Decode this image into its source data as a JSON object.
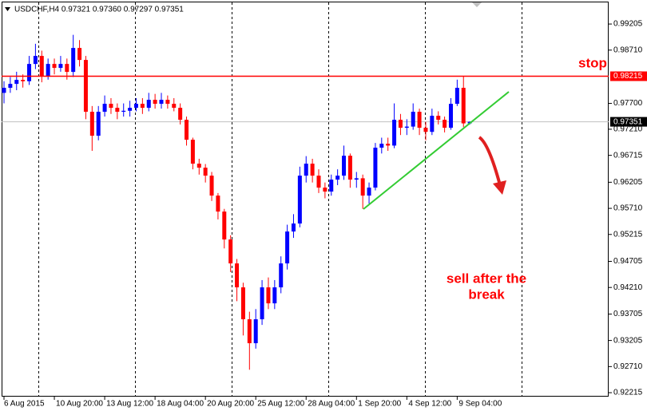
{
  "chart_data": {
    "type": "candlestick",
    "header": "USDCHF,H4  0.97321 0.97360 0.97297 0.97351",
    "categories": [
      "6 Aug 2015",
      null,
      null,
      null,
      null,
      null,
      null,
      null,
      "10 Aug 20:00",
      null,
      null,
      null,
      null,
      null,
      null,
      null,
      "13 Aug 12:00",
      null,
      null,
      null,
      null,
      null,
      null,
      null,
      "18 Aug 04:00",
      null,
      null,
      null,
      null,
      null,
      null,
      null,
      "20 Aug 20:00",
      null,
      null,
      null,
      null,
      null,
      null,
      null,
      "25 Aug 12:00",
      null,
      null,
      null,
      null,
      null,
      null,
      null,
      "28 Aug 04:00",
      null,
      null,
      null,
      null,
      null,
      null,
      null,
      "1 Sep 20:00",
      null,
      null,
      null,
      null,
      null,
      null,
      null,
      "4 Sep 12:00",
      null,
      null,
      null,
      null,
      null,
      null,
      null,
      "9 Sep 04:00",
      null,
      null
    ],
    "open": [
      0.979,
      0.97995,
      0.9807,
      0.98146,
      0.9812,
      0.98448,
      0.986,
      0.98222,
      0.98448,
      0.98373,
      0.98448,
      0.98297,
      0.98751,
      0.98524,
      0.97541,
      0.97087,
      0.97541,
      0.97692,
      0.97616,
      0.97541,
      0.9756,
      0.97616,
      0.97692,
      0.97616,
      0.97768,
      0.97692,
      0.97768,
      0.97692,
      0.97616,
      0.97389,
      0.97011,
      0.96557,
      0.96481,
      0.9633,
      0.95952,
      0.95649,
      0.9512,
      0.94666,
      0.94212,
      0.93607,
      0.93153,
      0.93607,
      0.94212,
      0.93909,
      0.94212,
      0.94666,
      0.95271,
      0.95422,
      0.9633,
      0.96557,
      0.9633,
      0.96103,
      0.96028,
      0.96255,
      0.9633,
      0.96708,
      0.96255,
      0.9628,
      0.95952,
      0.96103,
      0.9686,
      0.96935,
      0.969,
      0.97389,
      0.97238,
      0.9726,
      0.97541,
      0.97238,
      0.9716,
      0.97465,
      0.97389,
      0.97238,
      0.97692,
      0.97995,
      0.97321
    ],
    "high": [
      0.9812,
      0.982,
      0.983,
      0.9825,
      0.986,
      0.9883,
      0.987,
      0.9855,
      0.9855,
      0.986,
      0.9855,
      0.99,
      0.989,
      0.986,
      0.9765,
      0.9765,
      0.9785,
      0.978,
      0.977,
      0.977,
      0.9775,
      0.978,
      0.978,
      0.979,
      0.9788,
      0.979,
      0.9785,
      0.978,
      0.977,
      0.9745,
      0.9705,
      0.9665,
      0.9655,
      0.964,
      0.96,
      0.957,
      0.952,
      0.9475,
      0.943,
      0.9375,
      0.938,
      0.9435,
      0.944,
      0.9435,
      0.948,
      0.954,
      0.956,
      0.965,
      0.967,
      0.9665,
      0.9645,
      0.962,
      0.9635,
      0.9645,
      0.969,
      0.9675,
      0.964,
      0.9635,
      0.962,
      0.9695,
      0.9705,
      0.9705,
      0.977,
      0.975,
      0.974,
      0.977,
      0.976,
      0.9735,
      0.976,
      0.9755,
      0.9745,
      0.978,
      0.9815,
      0.98215,
      0.9736
    ],
    "low": [
      0.977,
      0.979,
      0.9795,
      0.98,
      0.9805,
      0.9835,
      0.981,
      0.9815,
      0.9825,
      0.983,
      0.9815,
      0.982,
      0.984,
      0.974,
      0.968,
      0.97,
      0.9745,
      0.975,
      0.974,
      0.9745,
      0.9745,
      0.9755,
      0.975,
      0.9755,
      0.976,
      0.976,
      0.976,
      0.9755,
      0.973,
      0.969,
      0.9645,
      0.9635,
      0.962,
      0.9585,
      0.955,
      0.9495,
      0.945,
      0.9395,
      0.933,
      0.9265,
      0.9305,
      0.935,
      0.938,
      0.938,
      0.941,
      0.9455,
      0.9515,
      0.9535,
      0.962,
      0.962,
      0.96,
      0.959,
      0.9595,
      0.9615,
      0.9625,
      0.961,
      0.961,
      0.957,
      0.958,
      0.9605,
      0.9675,
      0.968,
      0.9685,
      0.971,
      0.971,
      0.972,
      0.971,
      0.97,
      0.971,
      0.973,
      0.9715,
      0.972,
      0.9765,
      0.9725,
      0.97297
    ],
    "close": [
      0.97995,
      0.9807,
      0.98146,
      0.9812,
      0.98448,
      0.986,
      0.98222,
      0.98448,
      0.98373,
      0.98448,
      0.98297,
      0.98751,
      0.98524,
      0.97541,
      0.97087,
      0.97541,
      0.97692,
      0.97616,
      0.97541,
      0.9756,
      0.97616,
      0.97692,
      0.97616,
      0.97768,
      0.97692,
      0.97768,
      0.97692,
      0.97616,
      0.97389,
      0.97011,
      0.96557,
      0.96481,
      0.9633,
      0.95952,
      0.95649,
      0.9512,
      0.94666,
      0.94212,
      0.93607,
      0.93153,
      0.93607,
      0.94212,
      0.93909,
      0.94212,
      0.94666,
      0.95271,
      0.95422,
      0.9633,
      0.96557,
      0.9633,
      0.96103,
      0.96028,
      0.96255,
      0.9633,
      0.96708,
      0.96255,
      0.9628,
      0.95952,
      0.96103,
      0.9686,
      0.96935,
      0.969,
      0.97389,
      0.97238,
      0.9726,
      0.97541,
      0.97238,
      0.9716,
      0.97465,
      0.97389,
      0.97238,
      0.97692,
      0.97995,
      0.97321,
      0.97351
    ],
    "up_color": "#0000ff",
    "down_color": "#ff0000",
    "ylim": [
      0.9214,
      0.9963
    ],
    "yticks": [
      0.99205,
      {
        "value": 0.9871,
        "label": "0.98710"
      },
      {
        "value": 0.977,
        "label": "0.97700"
      },
      {
        "value": 0.9721,
        "label": "0.97210"
      },
      0.96715,
      0.96205,
      {
        "value": 0.9571,
        "label": "0.95710"
      },
      0.95215,
      0.94705,
      {
        "value": 0.9421,
        "label": "0.94210"
      },
      0.93705,
      0.93205,
      {
        "value": 0.9271,
        "label": "0.92710"
      },
      0.92215
    ],
    "stop_level": 0.98215,
    "stop_color": "#ff0000",
    "current_price": 0.97351,
    "stop_label": "stop",
    "annotation": [
      "sell after the",
      "break"
    ]
  }
}
